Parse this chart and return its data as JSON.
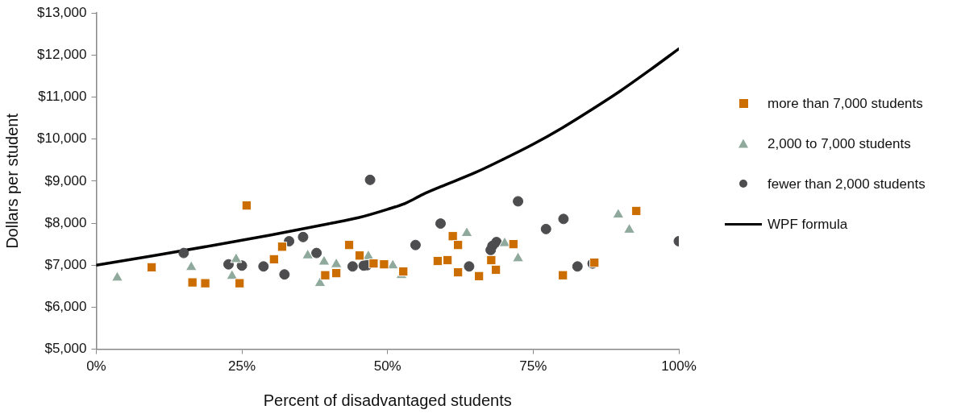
{
  "chart_data": {
    "type": "scatter",
    "xlabel": "Percent of disadvantaged students",
    "ylabel": "Dollars per student",
    "xlim": [
      0,
      100
    ],
    "xticks": [
      {
        "value": 0,
        "label": "0%"
      },
      {
        "value": 25,
        "label": "25%"
      },
      {
        "value": 50,
        "label": "50%"
      },
      {
        "value": 75,
        "label": "75%"
      },
      {
        "value": 100,
        "label": "100%"
      }
    ],
    "ylim": [
      5000,
      13000
    ],
    "yticks": [
      {
        "value": 5000,
        "label": "$5,000"
      },
      {
        "value": 6000,
        "label": "$6,000"
      },
      {
        "value": 7000,
        "label": "$7,000"
      },
      {
        "value": 8000,
        "label": "$8,000"
      },
      {
        "value": 9000,
        "label": "$9,000"
      },
      {
        "value": 10000,
        "label": "$10,000"
      },
      {
        "value": 11000,
        "label": "$11,000"
      },
      {
        "value": 12000,
        "label": "$12,000"
      },
      {
        "value": 13000,
        "label": "$13,000"
      }
    ],
    "grid": false,
    "legend": "right",
    "series": [
      {
        "name": "more than 7,000 students",
        "color": "#cc6d00",
        "marker": "square",
        "x": [
          9.5,
          16.5,
          18.7,
          25.8,
          24.6,
          30.5,
          31.9,
          43.4,
          45.2,
          47.6,
          49.4,
          52.7,
          39.3,
          41.2,
          61.2,
          62.1,
          58.6,
          60.3,
          62.1,
          65.7,
          71.6,
          67.8,
          68.6,
          80.1,
          85.5,
          92.7
        ],
        "values": [
          6950,
          6590,
          6570,
          8420,
          6570,
          7140,
          7440,
          7480,
          7230,
          7040,
          7020,
          6850,
          6760,
          6810,
          7690,
          7480,
          7100,
          7120,
          6830,
          6740,
          7500,
          7120,
          6890,
          6760,
          7060,
          8290
        ]
      },
      {
        "name": "2,000 to 7,000 students",
        "color": "#8faa9c",
        "marker": "triangle",
        "x": [
          3.6,
          16.3,
          24.0,
          23.3,
          36.3,
          39.1,
          41.2,
          38.4,
          46.7,
          50.9,
          52.4,
          63.6,
          70.1,
          72.4,
          89.6,
          91.5
        ],
        "values": [
          6700,
          6950,
          7140,
          6740,
          7230,
          7080,
          7020,
          6570,
          7210,
          6990,
          6760,
          7760,
          7520,
          7160,
          8200,
          7840
        ]
      },
      {
        "name": "fewer than 2,000 students",
        "color": "#4d4d4f",
        "marker": "circle",
        "x": [
          15.0,
          22.7,
          25.0,
          28.7,
          32.3,
          33.1,
          35.5,
          37.8,
          47.0,
          44.0,
          45.9,
          46.5,
          54.8,
          59.1,
          64.0,
          72.4,
          80.2,
          77.2,
          68.7,
          68.0,
          67.7,
          82.6,
          85.2,
          100
        ],
        "values": [
          7290,
          7020,
          6990,
          6970,
          6780,
          7570,
          7670,
          7290,
          9030,
          6970,
          6990,
          7000,
          7480,
          7990,
          6970,
          8520,
          8100,
          7860,
          7550,
          7460,
          7360,
          6970,
          7040,
          7570
        ]
      },
      {
        "name": "WPF formula",
        "type": "line",
        "color": "#000000",
        "marker": "none",
        "x": [
          0,
          10,
          20,
          30,
          40,
          45,
          50,
          53,
          56,
          59,
          65,
          70,
          75,
          80,
          85,
          90,
          95,
          100
        ],
        "values": [
          7000,
          7230,
          7470,
          7720,
          7990,
          8130,
          8330,
          8470,
          8680,
          8860,
          9200,
          9530,
          9880,
          10270,
          10700,
          11150,
          11640,
          12150
        ]
      }
    ]
  }
}
